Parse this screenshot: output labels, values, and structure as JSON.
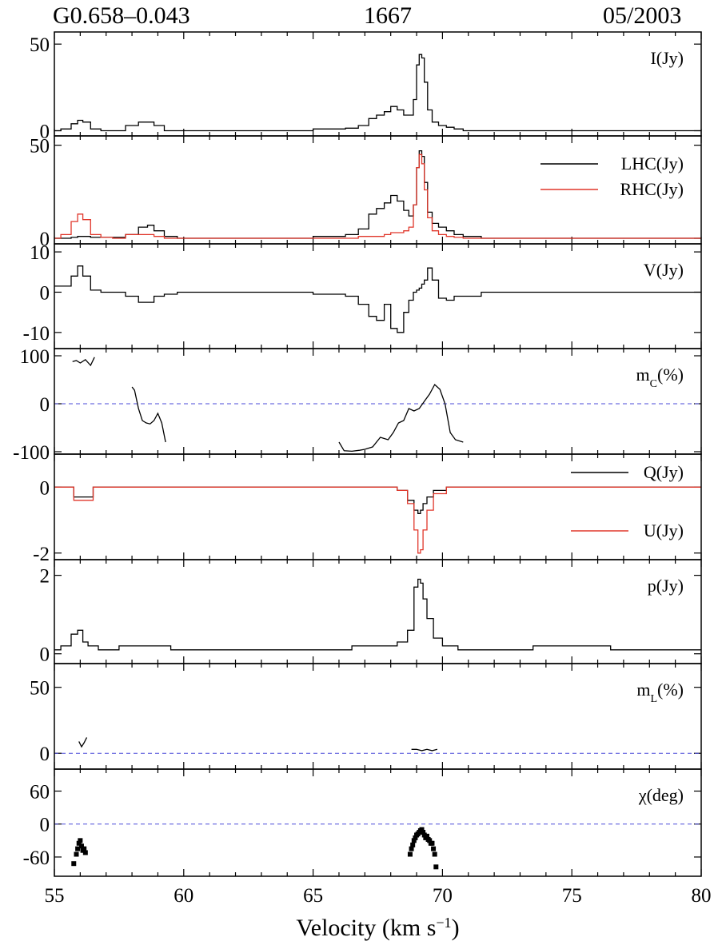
{
  "header": {
    "source": "G0.658–0.043",
    "frequency": "1667",
    "date": "05/2003"
  },
  "xaxis": {
    "label": "Velocity (km s",
    "label_sup": "−1",
    "label_close": ")",
    "range": [
      55,
      80
    ],
    "ticks": [
      "55",
      "60",
      "65",
      "70",
      "75",
      "80"
    ]
  },
  "chart_data": [
    {
      "type": "line",
      "panel_label": "I(Jy)",
      "ylim": [
        -3,
        57
      ],
      "yticks": [
        "0",
        "50"
      ],
      "ytick_values": [
        0,
        50
      ],
      "x": [
        55,
        55.5,
        55.8,
        56.0,
        56.2,
        56.6,
        57.0,
        57.5,
        58.0,
        58.5,
        58.7,
        59.0,
        59.5,
        60,
        62,
        64,
        66,
        66.5,
        67,
        67.3,
        67.6,
        67.9,
        68.1,
        68.4,
        68.6,
        68.8,
        68.95,
        69.05,
        69.15,
        69.25,
        69.35,
        69.5,
        69.7,
        70.0,
        70.3,
        70.6,
        71,
        72,
        73,
        75,
        78,
        80
      ],
      "series": [
        {
          "values": [
            0,
            1,
            4,
            6,
            5,
            1,
            0,
            0,
            3,
            5,
            5,
            3,
            0,
            0,
            0,
            0,
            1,
            1.5,
            3,
            7,
            9,
            11,
            14,
            12,
            9,
            9,
            18,
            38,
            44,
            42,
            28,
            12,
            5,
            3,
            2,
            1,
            0,
            0,
            0,
            0,
            0,
            0
          ],
          "color": "#000000"
        }
      ]
    },
    {
      "type": "line",
      "panel_label": "",
      "ylim": [
        -3,
        55
      ],
      "yticks": [
        "0",
        "50"
      ],
      "ytick_values": [
        0,
        50
      ],
      "legend": [
        {
          "name": "LHC(Jy)",
          "color": "#000000"
        },
        {
          "name": "RHC(Jy)",
          "color": "#e0362a"
        }
      ],
      "x": [
        55,
        55.5,
        55.8,
        56.0,
        56.2,
        56.6,
        57.0,
        57.5,
        58.0,
        58.5,
        58.7,
        59.0,
        59.5,
        60,
        62,
        64,
        66,
        66.5,
        67,
        67.3,
        67.6,
        67.9,
        68.1,
        68.4,
        68.6,
        68.8,
        68.95,
        69.05,
        69.15,
        69.25,
        69.35,
        69.5,
        69.7,
        70.0,
        70.3,
        70.6,
        71,
        72,
        73,
        75,
        78,
        80
      ],
      "series": [
        {
          "name": "LHC(Jy)",
          "values": [
            0,
            0,
            0.5,
            1,
            1,
            0.5,
            0.5,
            0.5,
            2,
            6,
            7,
            4,
            1,
            0,
            0,
            0,
            1,
            2,
            5,
            13,
            16,
            19,
            23,
            20,
            15,
            12,
            18,
            38,
            47,
            44,
            30,
            14,
            8,
            6,
            4,
            2,
            1,
            0,
            0,
            0,
            0,
            0
          ],
          "color": "#000000"
        },
        {
          "name": "RHC(Jy)",
          "values": [
            0,
            2,
            9,
            13,
            10,
            2,
            0.5,
            0,
            2,
            2,
            2,
            1,
            0,
            0,
            0,
            0,
            0,
            0,
            1,
            1,
            1,
            2,
            3,
            3,
            4,
            6,
            18,
            38,
            45,
            40,
            26,
            11,
            4,
            2,
            1,
            0.5,
            0,
            0,
            0,
            0,
            0,
            0
          ],
          "color": "#e0362a"
        }
      ]
    },
    {
      "type": "line",
      "panel_label": "V(Jy)",
      "ylim": [
        -14,
        12
      ],
      "yticks": [
        "10",
        "0",
        "-10"
      ],
      "ytick_values": [
        10,
        0,
        -10
      ],
      "x": [
        55,
        55.5,
        55.8,
        56.0,
        56.2,
        56.6,
        57.0,
        57.5,
        58.0,
        58.5,
        58.7,
        59.0,
        59.5,
        60,
        62,
        64,
        66,
        66.5,
        67,
        67.3,
        67.6,
        67.9,
        68.1,
        68.4,
        68.6,
        68.8,
        68.95,
        69.05,
        69.15,
        69.25,
        69.35,
        69.5,
        69.7,
        70.0,
        70.3,
        70.6,
        71,
        72,
        73,
        75,
        78,
        80
      ],
      "series": [
        {
          "values": [
            1.5,
            1.5,
            4,
            6.5,
            4,
            0.5,
            0,
            0,
            -1,
            -2.5,
            -2.5,
            -1,
            -0.5,
            0,
            0,
            0,
            -0.5,
            -1,
            -3,
            -6,
            -7,
            -3,
            -9,
            -10,
            -5,
            -2,
            0,
            0.5,
            1,
            2,
            3,
            6,
            3,
            -1.5,
            -2,
            -1,
            -1,
            0,
            0,
            0,
            0,
            0
          ],
          "color": "#000000"
        }
      ]
    },
    {
      "type": "line",
      "panel_label": "m",
      "panel_label_sub": "C",
      "panel_label_suffix": "(%)",
      "ylim": [
        -105,
        115
      ],
      "yticks": [
        "100",
        "0",
        "-100"
      ],
      "ytick_values": [
        100,
        0,
        -100
      ],
      "zero_line": true,
      "segments": [
        {
          "x": [
            55.7,
            55.85,
            56.0,
            56.2,
            56.4,
            56.55
          ],
          "values": [
            88,
            90,
            85,
            92,
            80,
            97
          ]
        },
        {
          "x": [
            58.0,
            58.1,
            58.25,
            58.4,
            58.55,
            58.7,
            58.85,
            59.0,
            59.15,
            59.3
          ],
          "values": [
            35,
            28,
            -10,
            -35,
            -40,
            -42,
            -35,
            -20,
            -40,
            -80
          ]
        },
        {
          "x": [
            66.0,
            66.2,
            66.5,
            66.8,
            67.0,
            67.3,
            67.6,
            67.9,
            68.1,
            68.3,
            68.5,
            68.7,
            68.9,
            69.1,
            69.3,
            69.5,
            69.7,
            69.9,
            70.1,
            70.3,
            70.5,
            70.8
          ],
          "values": [
            -80,
            -98,
            -99,
            -97,
            -95,
            -90,
            -70,
            -75,
            -60,
            -40,
            -35,
            -10,
            -15,
            -10,
            5,
            20,
            40,
            30,
            0,
            -60,
            -75,
            -80
          ]
        }
      ],
      "series": [
        {
          "color": "#000000"
        }
      ]
    },
    {
      "type": "line",
      "panel_label": "",
      "ylim": [
        -2.2,
        1.0
      ],
      "yticks": [
        "0",
        "-2"
      ],
      "ytick_values": [
        0,
        -2
      ],
      "legend": [
        {
          "name": "Q(Jy)",
          "color": "#000000"
        },
        {
          "name": "U(Jy)",
          "color": "#e0362a"
        }
      ],
      "x": [
        55,
        55.5,
        56,
        57,
        58,
        59,
        60,
        62,
        64,
        66,
        67,
        68,
        68.5,
        68.8,
        69.0,
        69.1,
        69.2,
        69.3,
        69.5,
        69.8,
        70.5,
        72,
        75,
        78,
        80
      ],
      "series": [
        {
          "name": "Q(Jy)",
          "values": [
            0,
            0,
            -0.3,
            0,
            0,
            0,
            0,
            0,
            0,
            0,
            0,
            0,
            -0.1,
            -0.4,
            -0.7,
            -0.8,
            -0.7,
            -0.5,
            -0.3,
            -0.1,
            0,
            0,
            0,
            0,
            0
          ],
          "color": "#000000"
        },
        {
          "name": "U(Jy)",
          "values": [
            0,
            0,
            -0.4,
            0,
            0,
            0,
            0,
            0,
            0,
            0,
            0,
            0,
            -0.1,
            -0.5,
            -1.3,
            -2.0,
            -1.9,
            -1.3,
            -0.7,
            -0.2,
            0,
            0,
            0,
            0,
            0
          ],
          "color": "#e0362a"
        }
      ]
    },
    {
      "type": "line",
      "panel_label": "p(Jy)",
      "ylim": [
        -0.25,
        2.4
      ],
      "yticks": [
        "2",
        "0"
      ],
      "ytick_values": [
        2,
        0
      ],
      "x": [
        55,
        55.5,
        55.8,
        56.0,
        56.2,
        56.4,
        57,
        58,
        59,
        60,
        62,
        64,
        66,
        67,
        68,
        68.5,
        68.8,
        69.0,
        69.1,
        69.2,
        69.3,
        69.5,
        69.8,
        70.2,
        71,
        72,
        75,
        78,
        80
      ],
      "series": [
        {
          "values": [
            0.1,
            0.2,
            0.5,
            0.6,
            0.3,
            0.2,
            0.1,
            0.2,
            0.2,
            0.1,
            0.1,
            0.1,
            0.1,
            0.2,
            0.2,
            0.3,
            0.6,
            1.7,
            1.9,
            1.8,
            1.4,
            0.9,
            0.4,
            0.2,
            0.1,
            0.1,
            0.2,
            0.1,
            0.1
          ],
          "color": "#000000"
        }
      ]
    },
    {
      "type": "line",
      "panel_label": "m",
      "panel_label_sub": "L",
      "panel_label_suffix": "(%)",
      "ylim": [
        -12,
        68
      ],
      "yticks": [
        "50",
        "0"
      ],
      "ytick_values": [
        50,
        0
      ],
      "zero_line": true,
      "segments": [
        {
          "x": [
            55.95,
            56.05,
            56.15,
            56.25
          ],
          "values": [
            9,
            5,
            8,
            12
          ]
        },
        {
          "x": [
            68.8,
            69.0,
            69.2,
            69.4,
            69.6,
            69.8
          ],
          "values": [
            3,
            3,
            2,
            3,
            2,
            3
          ]
        }
      ],
      "series": [
        {
          "color": "#000000"
        }
      ]
    },
    {
      "type": "scatter",
      "panel_label": "χ(deg)",
      "ylim": [
        -95,
        100
      ],
      "yticks": [
        "60",
        "0",
        "-60"
      ],
      "ytick_values": [
        60,
        0,
        -60
      ],
      "zero_line": true,
      "x": [
        55.75,
        55.85,
        55.9,
        55.95,
        56.0,
        56.05,
        56.1,
        56.15,
        56.2,
        68.75,
        68.8,
        68.85,
        68.9,
        68.95,
        69.0,
        69.05,
        69.1,
        69.15,
        69.2,
        69.25,
        69.3,
        69.35,
        69.4,
        69.45,
        69.5,
        69.55,
        69.6,
        69.65,
        69.7,
        69.75
      ],
      "series": [
        {
          "values": [
            -72,
            -55,
            -45,
            -35,
            -30,
            -40,
            -48,
            -45,
            -52,
            -55,
            -45,
            -38,
            -30,
            -25,
            -20,
            -18,
            -15,
            -12,
            -10,
            -15,
            -20,
            -25,
            -22,
            -28,
            -30,
            -35,
            -35,
            -45,
            -55,
            -78
          ],
          "color": "#000000"
        }
      ]
    }
  ]
}
